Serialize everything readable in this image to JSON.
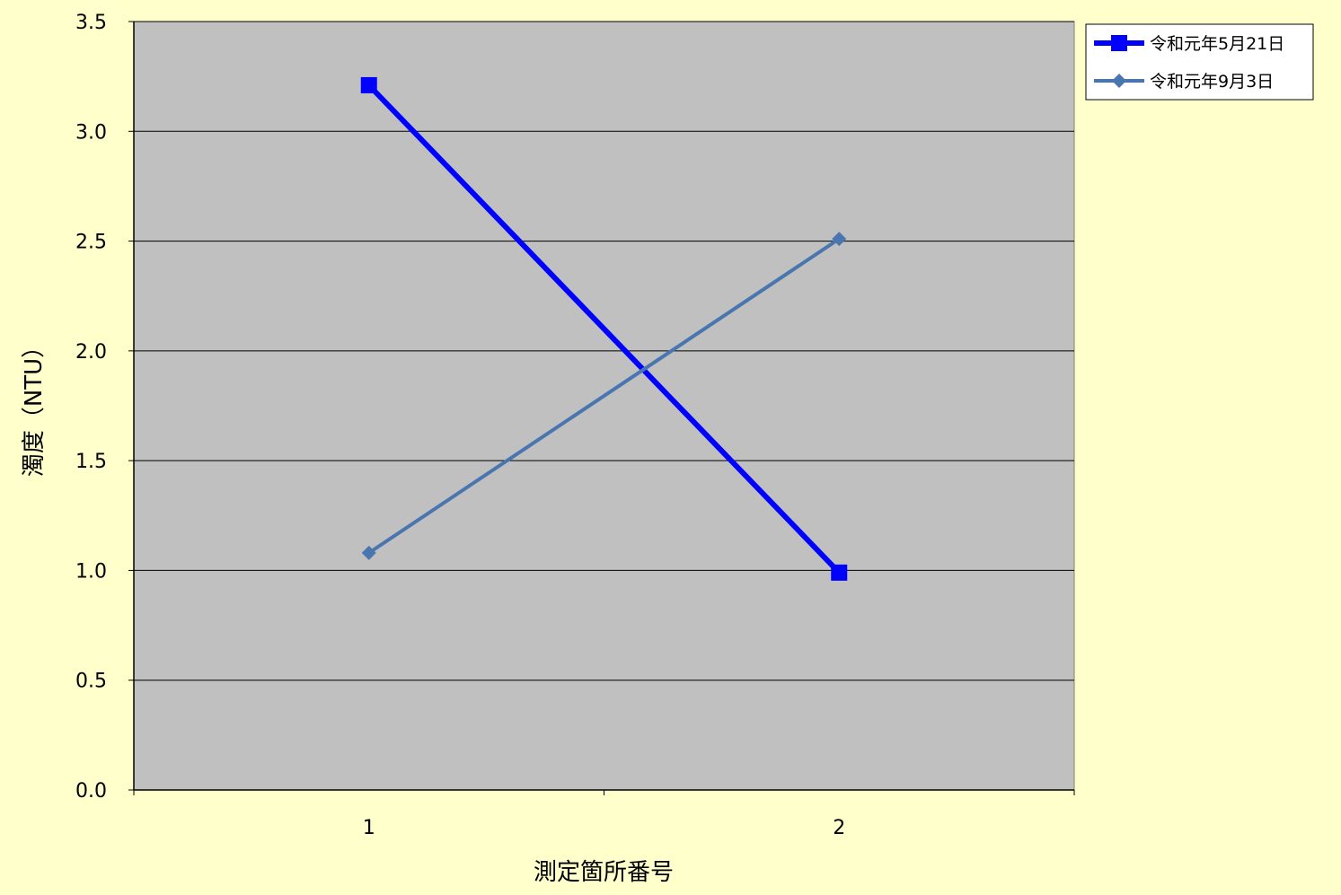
{
  "chart_data": {
    "type": "line",
    "title": "",
    "xlabel": "測定箇所番号",
    "ylabel": "濁度（NTU）",
    "categories": [
      "1",
      "2"
    ],
    "ylim": [
      0,
      3.5
    ],
    "yticks": [
      "0.0",
      "0.5",
      "1.0",
      "1.5",
      "2.0",
      "2.5",
      "3.0",
      "3.5"
    ],
    "grid": true,
    "legend_position": "top-right",
    "series": [
      {
        "name": "令和元年5月21日",
        "values": [
          3.21,
          0.99
        ],
        "color": "#0000ff",
        "marker": "square"
      },
      {
        "name": "令和元年9月3日",
        "values": [
          1.08,
          2.51
        ],
        "color": "#4a76b0",
        "marker": "diamond"
      }
    ]
  },
  "colors": {
    "page_background": "#ffffcc",
    "plot_background": "#c0c0c0"
  }
}
